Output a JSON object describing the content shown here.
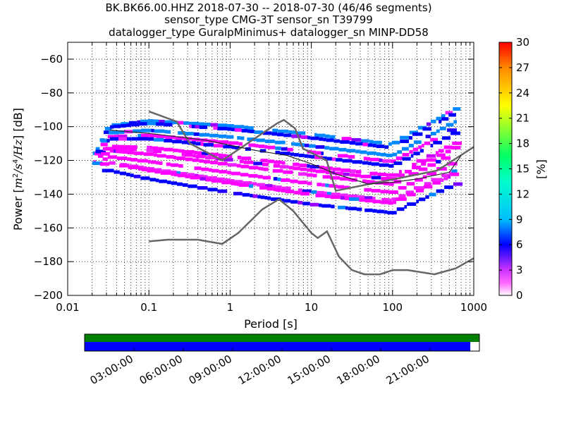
{
  "chart_data": {
    "type": "heatmap",
    "title_lines": [
      "BK.BK66.00.HHZ   2018-07-30 -- 2018-07-30  (46/46 segments)",
      "sensor_type CMG-3T sensor_sn T39799",
      "datalogger_type GuralpMinimus+ datalogger_sn MINP-DD58"
    ],
    "xlabel": "Period [s]",
    "ylabel": "Power [m²/s⁴/Hz] [dB]",
    "ylabel_parts": {
      "prefix": "Power [",
      "m": "m",
      "exp2": "2",
      "s": "/s",
      "exp4": "4",
      "hz": "/Hz",
      "suffix": "] [dB]"
    },
    "x_scale": "log",
    "xlim": [
      0.01,
      1000
    ],
    "ylim": [
      -200,
      -50
    ],
    "x_ticks": [
      0.01,
      0.1,
      1,
      10,
      100,
      1000
    ],
    "x_tick_labels": [
      "0.01",
      "0.1",
      "1",
      "10",
      "100",
      "1000"
    ],
    "y_ticks": [
      -200,
      -180,
      -160,
      -140,
      -120,
      -100,
      -80,
      -60
    ],
    "y_tick_labels": [
      "−200",
      "−180",
      "−160",
      "−140",
      "−120",
      "−100",
      "−80",
      "−60"
    ],
    "grid": true,
    "colorbar": {
      "label": "[%]",
      "min": 0,
      "max": 30,
      "ticks": [
        0,
        3,
        6,
        9,
        12,
        15,
        18,
        21,
        24,
        27,
        30
      ],
      "tick_labels": [
        "0",
        "3",
        "6",
        "9",
        "12",
        "15",
        "18",
        "21",
        "24",
        "27",
        "30"
      ]
    },
    "noise_models": [
      {
        "name": "NHNM",
        "x": [
          0.1,
          0.22,
          0.32,
          0.8,
          3.8,
          4.6,
          6.3,
          7.9,
          15.4,
          20,
          354.8,
          1000
        ],
        "y": [
          -91,
          -97,
          -110,
          -120,
          -98,
          -96,
          -101,
          -113,
          -120,
          -138,
          -126,
          -112
        ]
      },
      {
        "name": "NLNM",
        "x": [
          0.1,
          0.17,
          0.4,
          0.8,
          1.26,
          2.5,
          4,
          6,
          10,
          12,
          15.6,
          21.9,
          31.6,
          45,
          70,
          101,
          154,
          328,
          600,
          1000
        ],
        "y": [
          -168,
          -167,
          -167,
          -169.5,
          -163,
          -149,
          -143,
          -150,
          -163,
          -166,
          -162,
          -177,
          -185,
          -187.5,
          -187.5,
          -185,
          -185,
          -187.5,
          -184,
          -178
        ]
      }
    ],
    "mode_line": {
      "x": [
        0.033,
        0.1,
        0.5,
        1,
        2,
        5,
        10,
        20,
        50,
        100,
        200,
        500,
        700
      ],
      "y": [
        -102,
        -104,
        -108,
        -111,
        -114,
        -117,
        -122,
        -128,
        -134,
        -133,
        -131,
        -127,
        -117
      ]
    },
    "approx_percentile_bands": [
      {
        "name": "upper",
        "x": [
          0.02,
          0.033,
          0.1,
          1,
          10,
          100,
          600
        ],
        "y": [
          -118,
          -98,
          -95,
          -98,
          -103,
          -109,
          -88
        ]
      },
      {
        "name": "lower",
        "x": [
          0.02,
          0.033,
          0.1,
          1,
          10,
          100,
          600
        ],
        "y": [
          -125,
          -125,
          -130,
          -138,
          -145,
          -150,
          -133
        ]
      }
    ],
    "time_coverage_ticks": [
      "03:00:00",
      "06:00:00",
      "09:00:00",
      "12:00:00",
      "15:00:00",
      "18:00:00",
      "21:00:00"
    ],
    "coverage_fraction": 0.977
  }
}
